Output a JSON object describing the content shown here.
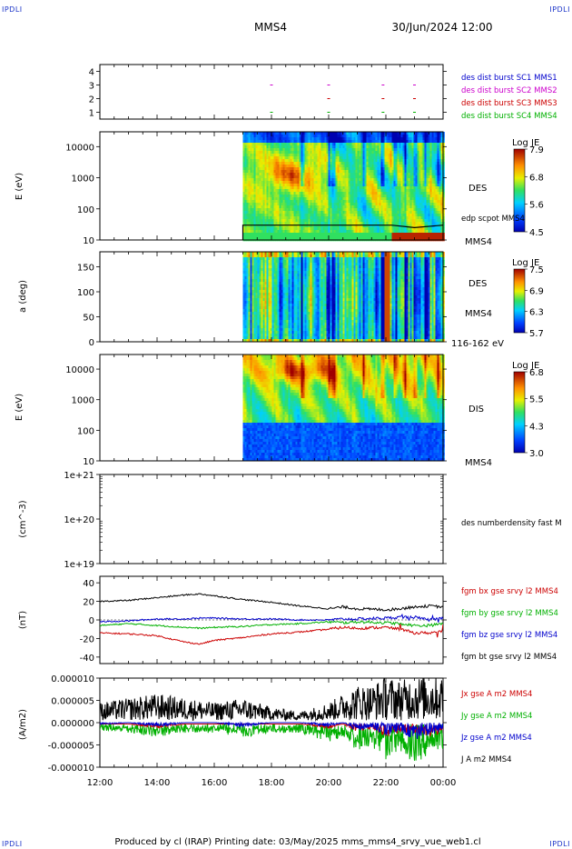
{
  "corner_tag": "IPDLI",
  "header": {
    "spacecraft": "MMS4",
    "date": "30/Jun/2024 12:00"
  },
  "footer": "Produced by cl (IRAP)   Printing date: 03/May/2025   mms_mms4_srvy_vue_web1.cl",
  "time_axis": {
    "ticks": [
      "12:00",
      "14:00",
      "16:00",
      "18:00",
      "20:00",
      "22:00",
      "00:00"
    ]
  },
  "panels": {
    "burst": {
      "y_ticks": [
        "4",
        "3",
        "2",
        "1"
      ],
      "legend": [
        "des dist burst SC1 MMS1",
        "des dist burst SC2 MMS2",
        "des dist burst SC3 MMS3",
        "des dist burst SC4 MMS4"
      ],
      "colors": [
        "#0000cc",
        "#cc00cc",
        "#cc0000",
        "#00b000"
      ]
    },
    "des_energy": {
      "ylabel": "E (eV)",
      "y_ticks": [
        "10000",
        "1000",
        "100",
        "10"
      ],
      "name": "DES",
      "overlay_label": "edp scpot MMS4",
      "sc_label": "MMS4",
      "colorbar": {
        "title": "Log JE",
        "ticks": [
          "7.9",
          "6.8",
          "5.6",
          "4.5"
        ]
      }
    },
    "des_pitch": {
      "ylabel": "a (deg)",
      "y_ticks": [
        "150",
        "100",
        "50",
        "0"
      ],
      "name": "DES",
      "sc_label": "MMS4",
      "energy_range": "116-162 eV",
      "colorbar": {
        "title": "Log JE",
        "ticks": [
          "7.5",
          "6.9",
          "6.3",
          "5.7"
        ]
      }
    },
    "dis_energy": {
      "ylabel": "E (eV)",
      "y_ticks": [
        "10000",
        "1000",
        "100",
        "10"
      ],
      "name": "DIS",
      "sc_label": "MMS4",
      "colorbar": {
        "title": "Log JE",
        "ticks": [
          "6.8",
          "5.5",
          "4.3",
          "3.0"
        ]
      }
    },
    "density": {
      "ylabel": "(cm^-3)",
      "y_ticks": [
        "1e+21",
        "1e+20",
        "1e+19"
      ],
      "legend": "des numberdensity fast M"
    },
    "fgm": {
      "ylabel": "(nT)",
      "y_ticks": [
        "40",
        "20",
        "0",
        "-20",
        "-40"
      ],
      "legend": [
        "fgm bx gse srvy l2 MMS4",
        "fgm by gse srvy l2 MMS4",
        "fgm bz gse srvy l2 MMS4",
        "fgm bt gse srvy l2 MMS4"
      ],
      "colors": [
        "#cc0000",
        "#00b000",
        "#0000cc",
        "#000000"
      ]
    },
    "current": {
      "ylabel": "(A/m2)",
      "y_ticks": [
        "0.000010",
        "0.000005",
        "0.000000",
        "-0.000005",
        "-0.000010"
      ],
      "legend": [
        "Jx gse A m2 MMS4",
        "Jy gse A m2 MMS4",
        "Jz gse A m2 MMS4",
        "J A m2 MMS4"
      ],
      "colors": [
        "#cc0000",
        "#00b000",
        "#0000cc",
        "#000000"
      ]
    }
  },
  "chart_data": [
    {
      "type": "scatter",
      "panel": "burst",
      "x_range_hours": [
        12,
        24
      ],
      "series": [
        {
          "name": "des dist burst SC1 MMS1",
          "y": 4,
          "x_hours": []
        },
        {
          "name": "des dist burst SC2 MMS2",
          "y": 3,
          "x_hours": [
            18.0,
            20.0,
            21.9,
            23.0
          ]
        },
        {
          "name": "des dist burst SC3 MMS3",
          "y": 2,
          "x_hours": [
            20.0,
            21.9,
            23.0
          ]
        },
        {
          "name": "des dist burst SC4 MMS4",
          "y": 1,
          "x_hours": [
            18.0,
            20.0,
            21.9,
            23.0
          ]
        }
      ],
      "ylim": [
        0.5,
        4.5
      ]
    },
    {
      "type": "heatmap",
      "panel": "des_energy",
      "ylabel": "E (eV)",
      "yscale": "log",
      "ylim": [
        10,
        30000
      ],
      "data_start_hour": 17.0,
      "colorbar_range": [
        4.5,
        7.9
      ],
      "scpot_overlay": {
        "name": "edp scpot MMS4",
        "x_hours": [
          17.0,
          22.2,
          23.0,
          24.0
        ],
        "y": [
          30,
          30,
          25,
          30
        ]
      }
    },
    {
      "type": "heatmap",
      "panel": "des_pitch",
      "ylabel": "a (deg)",
      "ylim": [
        0,
        180
      ],
      "data_start_hour": 17.0,
      "colorbar_range": [
        5.7,
        7.5
      ],
      "energy_range": "116-162 eV"
    },
    {
      "type": "heatmap",
      "panel": "dis_energy",
      "ylabel": "E (eV)",
      "yscale": "log",
      "ylim": [
        10,
        30000
      ],
      "data_start_hour": 17.0,
      "colorbar_range": [
        3.0,
        6.8
      ]
    },
    {
      "type": "line",
      "panel": "density",
      "ylabel": "(cm^-3)",
      "yscale": "log",
      "ylim": [
        1e+19,
        1e+21
      ],
      "series": [
        {
          "name": "des numberdensity fast M",
          "x_hours": [],
          "y": []
        }
      ]
    },
    {
      "type": "line",
      "panel": "fgm",
      "ylabel": "(nT)",
      "ylim": [
        -47,
        47
      ],
      "x_hours": [
        12,
        13,
        14,
        15,
        15.5,
        16,
        17,
        18,
        19,
        20,
        20.5,
        21,
        22,
        22.5,
        23,
        23.5,
        24
      ],
      "series": [
        {
          "name": "fgm bx gse srvy l2 MMS4",
          "y": [
            -14,
            -15,
            -17,
            -24,
            -26,
            -22,
            -19,
            -15,
            -13,
            -10,
            -8,
            -9,
            -8,
            -10,
            -14,
            -14,
            -12
          ]
        },
        {
          "name": "fgm by gse srvy l2 MMS4",
          "y": [
            -6,
            -4,
            -6,
            -8,
            -9,
            -8,
            -7,
            -5,
            -4,
            -2,
            -3,
            -2,
            -3,
            -4,
            -6,
            -6,
            -4
          ]
        },
        {
          "name": "fgm bz gse srvy l2 MMS4",
          "y": [
            -2,
            -1,
            1,
            1,
            2,
            2,
            1,
            1,
            0,
            0,
            1,
            1,
            2,
            3,
            3,
            0,
            2
          ]
        },
        {
          "name": "fgm bt gse srvy l2 MMS4",
          "y": [
            20,
            21,
            24,
            27,
            28,
            26,
            22,
            19,
            15,
            12,
            14,
            12,
            11,
            12,
            14,
            15,
            14
          ]
        }
      ]
    },
    {
      "type": "line",
      "panel": "current",
      "ylabel": "(A/m2)",
      "ylim": [
        -1e-05,
        1e-05
      ],
      "x_hours": [
        12,
        13,
        14,
        15,
        16,
        17,
        18,
        19,
        20,
        20.5,
        21,
        21.5,
        22,
        22.5,
        23,
        23.5,
        24
      ],
      "series": [
        {
          "name": "Jx gse A m2 MMS4",
          "y": [
            0,
            0,
            -1e-06,
            0,
            0,
            0,
            0,
            0,
            -1e-06,
            0,
            -2e-06,
            -1e-06,
            -3e-06,
            -2e-06,
            -2e-06,
            -3e-06,
            -2e-06
          ]
        },
        {
          "name": "Jy gse A m2 MMS4",
          "y": [
            -1.5e-06,
            -2e-06,
            -3e-06,
            -2e-06,
            -2e-06,
            -3e-06,
            -2e-06,
            -2e-06,
            -4e-06,
            -3e-06,
            -6e-06,
            -5e-06,
            -8e-06,
            -6e-06,
            -9e-06,
            -7e-06,
            -7e-06
          ]
        },
        {
          "name": "Jz gse A m2 MMS4",
          "y": [
            -5e-07,
            0,
            -1e-06,
            0,
            0,
            -1e-06,
            0,
            0,
            -1e-06,
            0,
            -2e-06,
            -1e-06,
            -3e-06,
            -2e-06,
            -4e-06,
            -3e-06,
            -2e-06
          ]
        },
        {
          "name": "J A m2 MMS4",
          "y": [
            4e-06,
            5e-06,
            6e-06,
            5e-06,
            4e-06,
            5e-06,
            3e-06,
            2e-06,
            4e-06,
            6e-06,
            8e-06,
            8e-06,
            1e-05,
            9e-06,
            1e-05,
            1e-05,
            1e-05
          ]
        }
      ]
    }
  ]
}
